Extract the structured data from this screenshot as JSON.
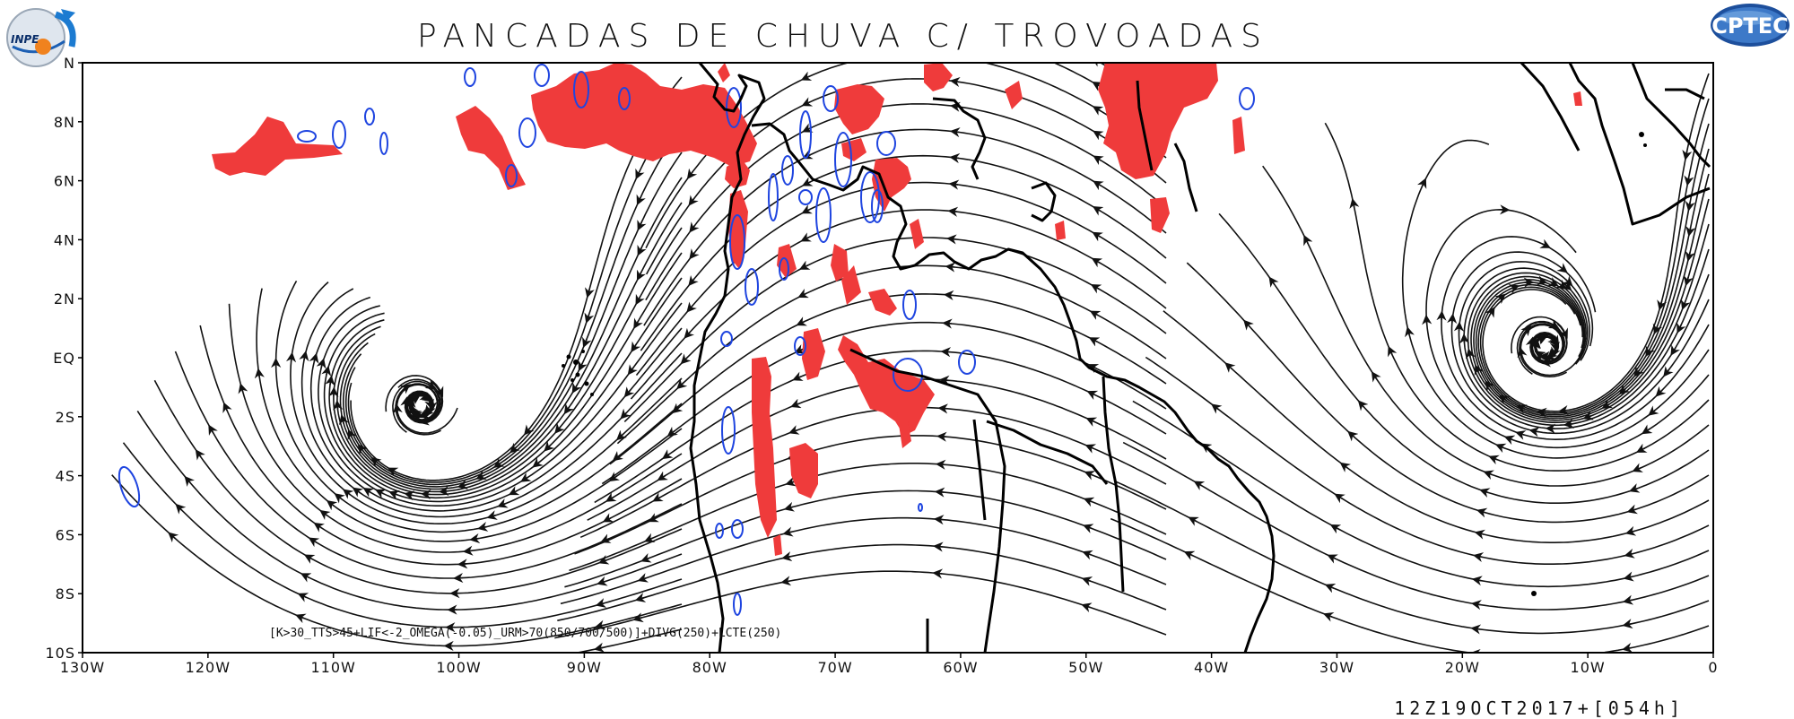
{
  "title": "PANCADAS DE CHUVA C/ TROVOADAS",
  "criteria": "[K>30_TTS>45+LIF<-2_OMEGA(-0.05)_URM>70(850/700/500)]+DIVG(250)+LCTE(250)",
  "valid_time": "12Z19OCT2017+[054h]",
  "logos": {
    "left": "INPE",
    "right": "CPTEC"
  },
  "colors": {
    "storm_area": "#ef3b3b",
    "contour": "#1f45e0",
    "streamline": "#111111",
    "coast": "#000000"
  },
  "lon_labels": [
    "130W",
    "120W",
    "110W",
    "100W",
    "90W",
    "80W",
    "70W",
    "60W",
    "50W",
    "40W",
    "30W",
    "20W",
    "10W",
    "0"
  ],
  "lat_labels": [
    "10S",
    "8S",
    "6S",
    "4S",
    "2S",
    "EQ",
    "2N",
    "4N",
    "6N",
    "8N",
    "N"
  ]
}
